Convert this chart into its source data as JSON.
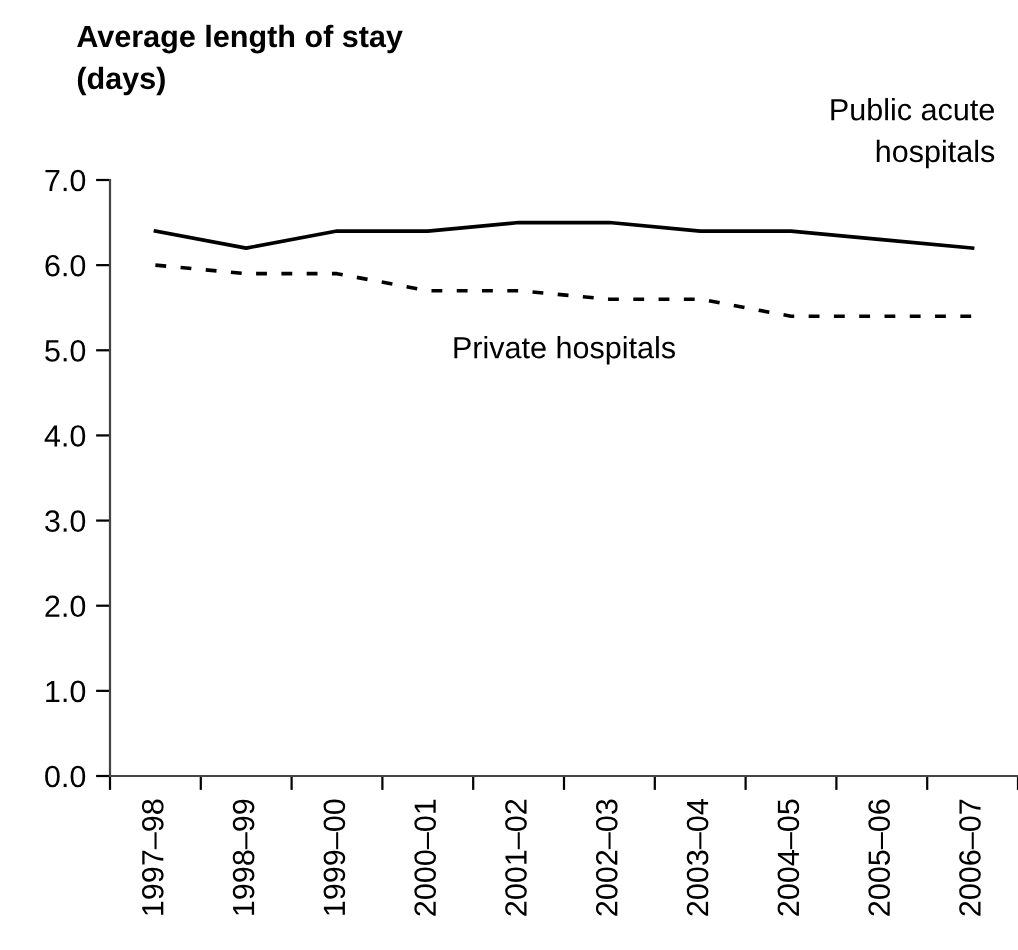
{
  "chart_data": {
    "type": "line",
    "ylabel": "Average length of stay\n(days)",
    "categories": [
      "1997–98",
      "1998–99",
      "1999–00",
      "2000–01",
      "2001–02",
      "2002–03",
      "2003–04",
      "2004–05",
      "2005–06",
      "2006–07"
    ],
    "series": [
      {
        "name": "Public acute\nhospitals",
        "color": "#000000",
        "line_style": "solid",
        "values": [
          6.4,
          6.2,
          6.4,
          6.4,
          6.5,
          6.5,
          6.4,
          6.4,
          6.3,
          6.2
        ]
      },
      {
        "name": "Private hospitals",
        "color": "#000000",
        "line_style": "dotted",
        "values": [
          6.0,
          5.9,
          5.9,
          5.7,
          5.7,
          5.6,
          5.6,
          5.4,
          5.4,
          5.4
        ]
      }
    ],
    "ylim": [
      0,
      7
    ],
    "yticks": [
      {
        "value": 0,
        "label": "0.0"
      },
      {
        "value": 1,
        "label": "1.0"
      },
      {
        "value": 2,
        "label": "2.0"
      },
      {
        "value": 3,
        "label": "3.0"
      },
      {
        "value": 4,
        "label": "4.0"
      },
      {
        "value": 5,
        "label": "5.0"
      },
      {
        "value": 6,
        "label": "6.0"
      },
      {
        "value": 7,
        "label": "7.0"
      }
    ],
    "grid": false,
    "legend": false,
    "marker": "none"
  }
}
